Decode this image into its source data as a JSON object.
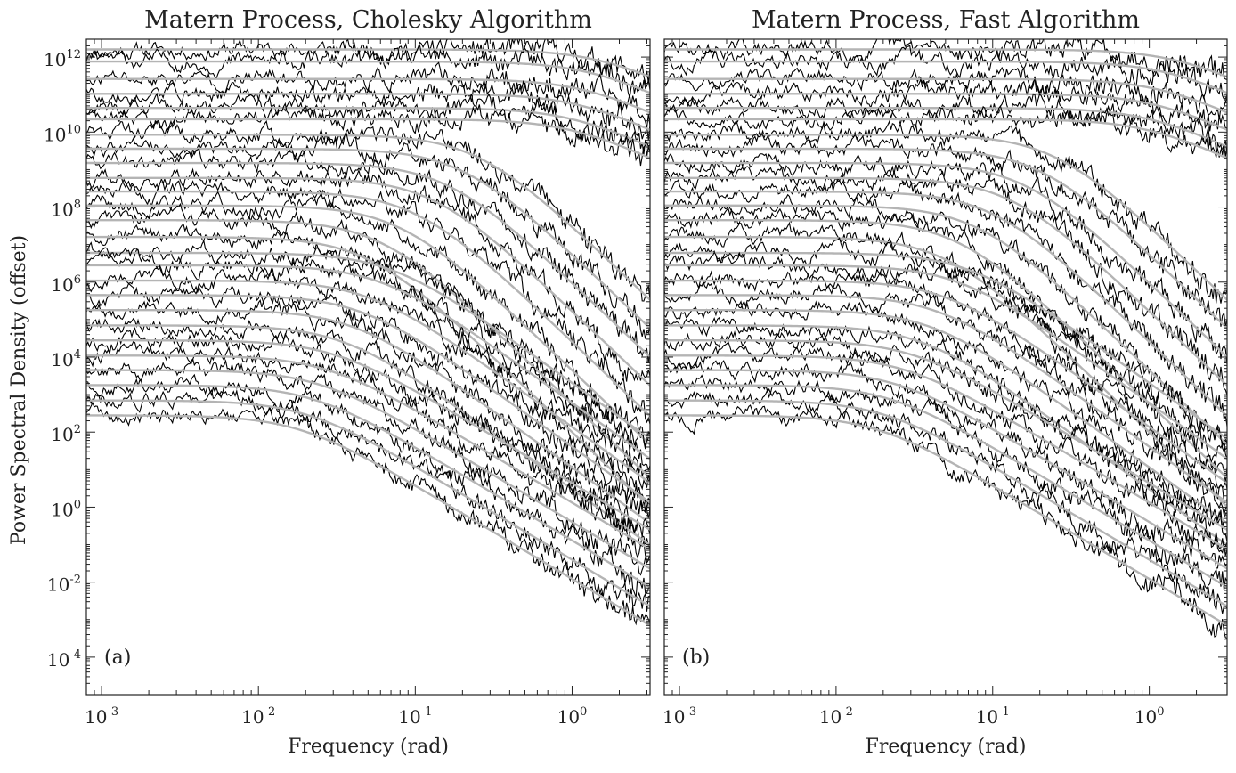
{
  "chart_data": {
    "type": "line",
    "y_label": "Power Spectral Density (offset)",
    "y_scale": "log",
    "x_scale": "log",
    "grid": false,
    "legend": "none",
    "colors": {
      "periodogram": "#000000",
      "theoretical": "#b4b4b4",
      "axes": "#222222"
    },
    "panels": [
      {
        "title": "Matern Process, Cholesky Algorithm",
        "tag": "(a)",
        "x_label": "Frequency (rad)",
        "x_ticks": [
          {
            "base": "10",
            "exp": "-3",
            "value": 0.001
          },
          {
            "base": "10",
            "exp": "-2",
            "value": 0.01
          },
          {
            "base": "10",
            "exp": "-1",
            "value": 0.1
          },
          {
            "base": "10",
            "exp": "0",
            "value": 1
          }
        ],
        "y_ticks": [
          {
            "base": "10",
            "exp": "12",
            "value": 1000000000000.0
          },
          {
            "base": "10",
            "exp": "10",
            "value": 10000000000.0
          },
          {
            "base": "10",
            "exp": "8",
            "value": 100000000.0
          },
          {
            "base": "10",
            "exp": "6",
            "value": 1000000.0
          },
          {
            "base": "10",
            "exp": "4",
            "value": 10000.0
          },
          {
            "base": "10",
            "exp": "2",
            "value": 100
          },
          {
            "base": "10",
            "exp": "0",
            "value": 1
          },
          {
            "base": "10",
            "exp": "-2",
            "value": 0.01
          },
          {
            "base": "10",
            "exp": "-4",
            "value": 0.0001
          }
        ],
        "xlim": [
          0.0008,
          3.14
        ],
        "ylim": [
          1e-05,
          3000000000000.0
        ],
        "seed": 11
      },
      {
        "title": "Matern Process, Fast Algorithm",
        "tag": "(b)",
        "x_label": "Frequency (rad)",
        "x_ticks": [
          {
            "base": "10",
            "exp": "-3",
            "value": 0.001
          },
          {
            "base": "10",
            "exp": "-2",
            "value": 0.01
          },
          {
            "base": "10",
            "exp": "-1",
            "value": 0.1
          },
          {
            "base": "10",
            "exp": "0",
            "value": 1
          }
        ],
        "y_ticks": [],
        "xlim": [
          0.0008,
          3.14
        ],
        "ylim": [
          1e-05,
          3000000000000.0
        ],
        "seed": 29
      }
    ],
    "series": [
      {
        "plateau": 1600000000000.0,
        "cutoff": 1.5,
        "slope": 2
      },
      {
        "plateau": 760000000000.0,
        "cutoff": 1.3,
        "slope": 2
      },
      {
        "plateau": 260000000000.0,
        "cutoff": 1.2,
        "slope": 2
      },
      {
        "plateau": 105000000000.0,
        "cutoff": 1.1,
        "slope": 2
      },
      {
        "plateau": 44000000000.0,
        "cutoff": 1.0,
        "slope": 2
      },
      {
        "plateau": 22000000000.0,
        "cutoff": 1.0,
        "slope": 2
      },
      {
        "plateau": 8500000000.0,
        "cutoff": 0.25,
        "slope": 4
      },
      {
        "plateau": 3600000000.0,
        "cutoff": 0.2,
        "slope": 4
      },
      {
        "plateau": 1500000000.0,
        "cutoff": 0.16,
        "slope": 4
      },
      {
        "plateau": 600000000.0,
        "cutoff": 0.13,
        "slope": 4
      },
      {
        "plateau": 260000000.0,
        "cutoff": 0.1,
        "slope": 4
      },
      {
        "plateau": 110000000.0,
        "cutoff": 0.08,
        "slope": 4
      },
      {
        "plateau": 45000000.0,
        "cutoff": 0.06,
        "slope": 4
      },
      {
        "plateau": 16000000.0,
        "cutoff": 0.05,
        "slope": 4
      },
      {
        "plateau": 6000000.0,
        "cutoff": 0.07,
        "slope": 3
      },
      {
        "plateau": 2800000.0,
        "cutoff": 0.06,
        "slope": 3
      },
      {
        "plateau": 1100000.0,
        "cutoff": 0.05,
        "slope": 3
      },
      {
        "plateau": 450000.0,
        "cutoff": 0.045,
        "slope": 3
      },
      {
        "plateau": 180000.0,
        "cutoff": 0.04,
        "slope": 3
      },
      {
        "plateau": 70000.0,
        "cutoff": 0.035,
        "slope": 3
      },
      {
        "plateau": 28000.0,
        "cutoff": 0.03,
        "slope": 2.5
      },
      {
        "plateau": 11000.0,
        "cutoff": 0.027,
        "slope": 2.5
      },
      {
        "plateau": 4500.0,
        "cutoff": 0.024,
        "slope": 2.5
      },
      {
        "plateau": 1800.0,
        "cutoff": 0.022,
        "slope": 2.5
      },
      {
        "plateau": 700,
        "cutoff": 0.02,
        "slope": 2.5
      },
      {
        "plateau": 280,
        "cutoff": 0.018,
        "slope": 2.5
      }
    ]
  }
}
